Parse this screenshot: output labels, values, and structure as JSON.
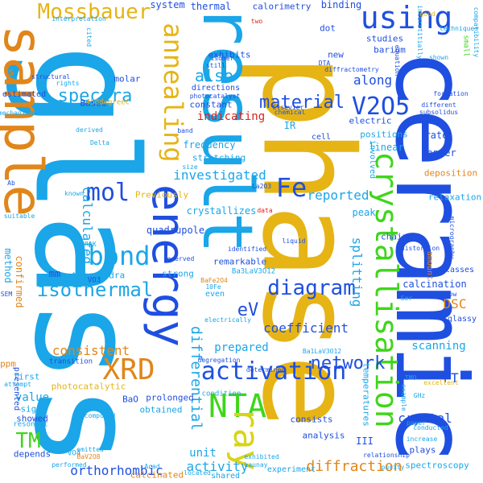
{
  "palette": {
    "blue": "#1f4fe0",
    "sky": "#1aa6e8",
    "gold": "#e6b415",
    "orange": "#e0861a",
    "green": "#3fd61a",
    "yellow": "#d9d414",
    "red": "#d9241a",
    "teal": "#17c9b8",
    "gray": "#3aa3d6"
  },
  "words": [
    "glass",
    "phase",
    "ceramic",
    "result",
    "sample",
    "energy",
    "crystallisation",
    "using",
    "activation",
    "XRD",
    "NTA",
    "ray",
    "annealing",
    "bond",
    "V2O5",
    "Fe",
    "mol",
    "Mossbauer",
    "diagram",
    "isothermal",
    "material",
    "network",
    "spectra",
    "TM",
    "eV",
    "also",
    "calculated",
    "differential",
    "crystal",
    "diffraction",
    "coefficient",
    "consistent",
    "reported",
    "splitting",
    "investigated",
    "along",
    "orthorhombic",
    "scanning",
    "activity",
    "DSC",
    "calcination",
    "prepared",
    "binding",
    "system",
    "thermal",
    "calorimetry",
    "exhibits",
    "quadrupole",
    "indicating",
    "frequency",
    "crystallizes",
    "FT",
    "confirmed",
    "method",
    "value",
    "unit",
    "linear",
    "center",
    "temperatures",
    "electric",
    "studies",
    "dot",
    "IR",
    "rate",
    "constant",
    "stretching",
    "tetrahedra",
    "first",
    "sigma",
    "photocatalytic",
    "showed",
    "III",
    "depends",
    "remarkable",
    "strong",
    "peak",
    "Previously",
    "prolonged",
    "analysis",
    "consists",
    "obtained",
    "deposition",
    "relaxation",
    "mm",
    "plays",
    "spectroscopy",
    "positions",
    "new",
    "barium",
    "molar",
    "cell",
    "chains",
    "even",
    "glasses",
    "directions",
    "Ba3LaV3O12",
    "BaO",
    "estimated",
    "ppm",
    "Based",
    "450degreeC",
    "amount",
    "glassy",
    "shared",
    "calcinated",
    "involved",
    "experiment",
    "presented",
    "resonant",
    "VO4",
    "VO3",
    "transition",
    "condition",
    "s",
    "interstitially",
    "compatibility",
    "good",
    "two",
    "cited",
    "interpretation",
    "mechanisms",
    "structural",
    "rights",
    "Elsevier",
    "isomer",
    "still",
    "photocatalyst",
    "chemical",
    "DTA",
    "copper",
    "equation",
    "small",
    "formation",
    "subsolidus",
    "different",
    "shown",
    "techniques",
    "diffractometry",
    "derived",
    "Delta",
    "band",
    "size",
    "La2O3",
    "data",
    "liquid",
    "identified",
    "reserved",
    "known",
    "BaFe2O4",
    "micrography",
    "distortion",
    "ultrarow",
    "electrically",
    "degregation",
    "determined",
    "Ba1LaV3O12",
    "suitable",
    "exhibited",
    "relationship",
    "composed",
    "increase",
    "excellent",
    "GHz",
    "SEM",
    "attempt",
    "performed",
    "Acad",
    "located",
    "Launay",
    "paper",
    "emitted",
    "BaV2O8",
    "purity",
    "conducted",
    "example",
    "Ser",
    "IMO",
    "3RAK",
    "10Fe",
    "42V0",
    "Ab"
  ]
}
